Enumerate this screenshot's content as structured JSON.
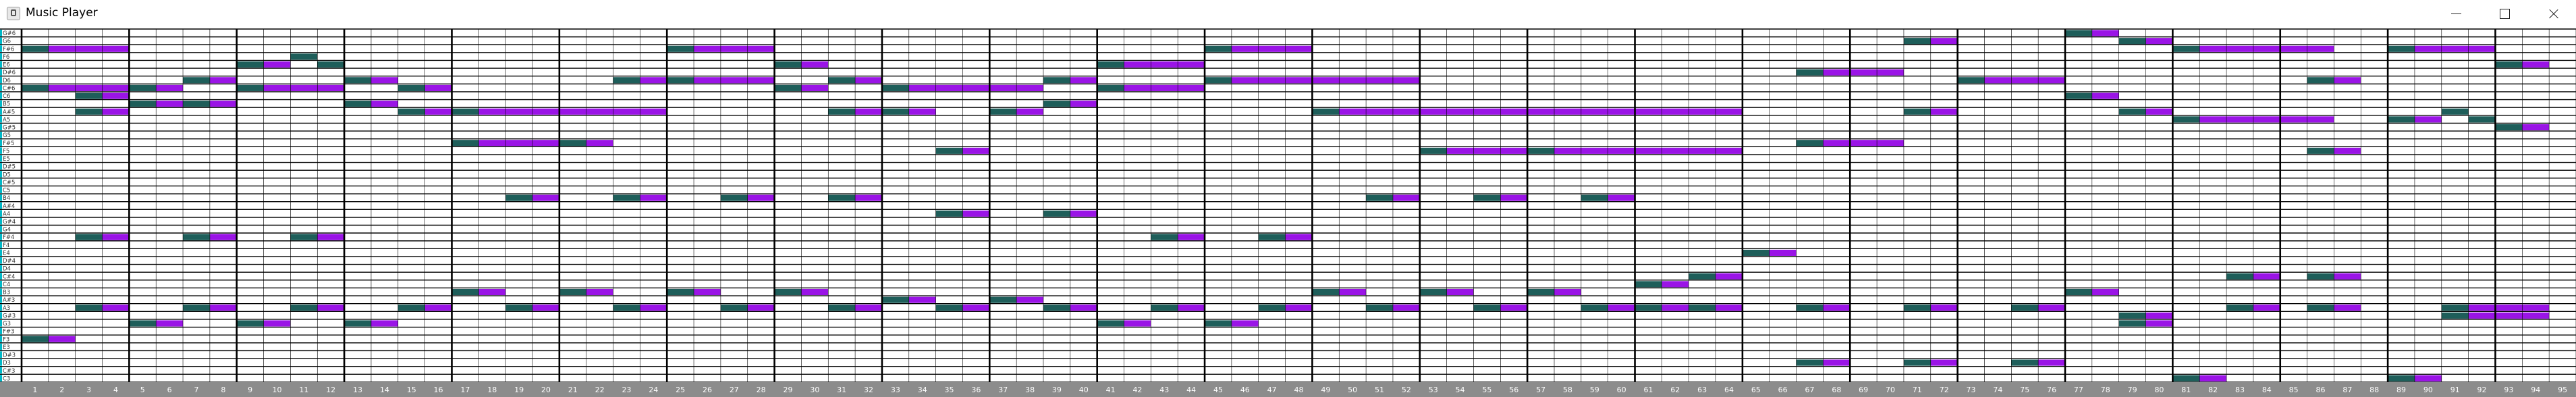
{
  "window": {
    "title": "Music Player",
    "icon": "music-player-app-icon",
    "controls": [
      "minimize-icon",
      "maximize-icon",
      "close-icon"
    ]
  },
  "colors": {
    "note_start": "#1e5e5a",
    "note_sustain": "#9a14e6",
    "grid_line": "#000000",
    "key_accent": "#00b8c8",
    "footer_bg": "#8c8c8c",
    "footer_text": "#ffffff"
  },
  "pitches": [
    "G#6",
    "G6",
    "F#6",
    "F6",
    "E6",
    "D#6",
    "D6",
    "C#6",
    "C6",
    "B5",
    "A#5",
    "A5",
    "G#5",
    "G5",
    "F#5",
    "F5",
    "E5",
    "D#5",
    "D5",
    "C#5",
    "C5",
    "B4",
    "A#4",
    "A4",
    "G#4",
    "G4",
    "F#4",
    "F4",
    "E4",
    "D#4",
    "D4",
    "C#4",
    "C4",
    "B3",
    "A#3",
    "A3",
    "G#3",
    "G3",
    "F#3",
    "F3",
    "E3",
    "D#3",
    "D3",
    "C#3",
    "C3"
  ],
  "measures": [
    "1",
    "2",
    "3",
    "4",
    "5",
    "6",
    "7",
    "8",
    "9",
    "10",
    "11",
    "12",
    "13",
    "14",
    "15",
    "16",
    "17",
    "18",
    "19",
    "20",
    "21",
    "22",
    "23",
    "24",
    "25",
    "26",
    "27",
    "28",
    "29",
    "30",
    "31",
    "32",
    "33",
    "34",
    "35",
    "36",
    "37",
    "38",
    "39",
    "40",
    "41",
    "42",
    "43",
    "44",
    "45",
    "46",
    "47",
    "48",
    "49",
    "50",
    "51",
    "52",
    "53",
    "54",
    "55",
    "56",
    "57",
    "58",
    "59",
    "60",
    "61",
    "62",
    "63",
    "64",
    "65",
    "66",
    "67",
    "68",
    "69",
    "70",
    "71",
    "72",
    "73",
    "74",
    "75",
    "76",
    "77",
    "78",
    "79",
    "80",
    "81",
    "82",
    "83",
    "84",
    "85",
    "86",
    "87",
    "88",
    "89",
    "90",
    "91",
    "92",
    "93",
    "94",
    "95"
  ],
  "notes": [
    {
      "pitch": "F#6",
      "start": 1,
      "length": 4
    },
    {
      "pitch": "C#6",
      "start": 1,
      "length": 4
    },
    {
      "pitch": "C6",
      "start": 3,
      "length": 2
    },
    {
      "pitch": "A#5",
      "start": 3,
      "length": 2
    },
    {
      "pitch": "F#4",
      "start": 3,
      "length": 2
    },
    {
      "pitch": "A3",
      "start": 3,
      "length": 2
    },
    {
      "pitch": "F3",
      "start": 1,
      "length": 2
    },
    {
      "pitch": "C#6",
      "start": 5,
      "length": 2
    },
    {
      "pitch": "B5",
      "start": 5,
      "length": 2
    },
    {
      "pitch": "G3",
      "start": 5,
      "length": 2
    },
    {
      "pitch": "D6",
      "start": 7,
      "length": 2
    },
    {
      "pitch": "B5",
      "start": 7,
      "length": 2
    },
    {
      "pitch": "F#4",
      "start": 7,
      "length": 2
    },
    {
      "pitch": "A3",
      "start": 7,
      "length": 2
    },
    {
      "pitch": "F6",
      "start": 11,
      "length": 1
    },
    {
      "pitch": "E6",
      "start": 9,
      "length": 2
    },
    {
      "pitch": "E6",
      "start": 12,
      "length": 1
    },
    {
      "pitch": "C#6",
      "start": 9,
      "length": 4
    },
    {
      "pitch": "G3",
      "start": 9,
      "length": 2
    },
    {
      "pitch": "F#4",
      "start": 11,
      "length": 2
    },
    {
      "pitch": "A3",
      "start": 11,
      "length": 2
    },
    {
      "pitch": "D6",
      "start": 13,
      "length": 2
    },
    {
      "pitch": "B5",
      "start": 13,
      "length": 2
    },
    {
      "pitch": "C#6",
      "start": 15,
      "length": 2
    },
    {
      "pitch": "A#5",
      "start": 15,
      "length": 2
    },
    {
      "pitch": "G3",
      "start": 13,
      "length": 2
    },
    {
      "pitch": "A3",
      "start": 15,
      "length": 2
    },
    {
      "pitch": "A#5",
      "start": 17,
      "length": 8
    },
    {
      "pitch": "F#5",
      "start": 17,
      "length": 4
    },
    {
      "pitch": "B3",
      "start": 17,
      "length": 2
    },
    {
      "pitch": "B4",
      "start": 19,
      "length": 2
    },
    {
      "pitch": "A3",
      "start": 19,
      "length": 2
    },
    {
      "pitch": "F#5",
      "start": 21,
      "length": 2
    },
    {
      "pitch": "B3",
      "start": 21,
      "length": 2
    },
    {
      "pitch": "A3",
      "start": 23,
      "length": 2
    },
    {
      "pitch": "D6",
      "start": 23,
      "length": 2
    },
    {
      "pitch": "B4",
      "start": 23,
      "length": 2
    },
    {
      "pitch": "F#6",
      "start": 25,
      "length": 4
    },
    {
      "pitch": "D6",
      "start": 25,
      "length": 4
    },
    {
      "pitch": "B3",
      "start": 25,
      "length": 2
    },
    {
      "pitch": "B4",
      "start": 27,
      "length": 2
    },
    {
      "pitch": "A3",
      "start": 27,
      "length": 2
    },
    {
      "pitch": "E6",
      "start": 29,
      "length": 2
    },
    {
      "pitch": "C#6",
      "start": 29,
      "length": 2
    },
    {
      "pitch": "B3",
      "start": 29,
      "length": 2
    },
    {
      "pitch": "A3",
      "start": 31,
      "length": 2
    },
    {
      "pitch": "D6",
      "start": 31,
      "length": 2
    },
    {
      "pitch": "A#5",
      "start": 31,
      "length": 2
    },
    {
      "pitch": "B4",
      "start": 31,
      "length": 2
    },
    {
      "pitch": "C#6",
      "start": 33,
      "length": 6
    },
    {
      "pitch": "A#5",
      "start": 33,
      "length": 2
    },
    {
      "pitch": "A#3",
      "start": 33,
      "length": 2
    },
    {
      "pitch": "A3",
      "start": 35,
      "length": 2
    },
    {
      "pitch": "F5",
      "start": 35,
      "length": 2
    },
    {
      "pitch": "A4",
      "start": 35,
      "length": 2
    },
    {
      "pitch": "A#5",
      "start": 37,
      "length": 2
    },
    {
      "pitch": "A#3",
      "start": 37,
      "length": 2
    },
    {
      "pitch": "A3",
      "start": 39,
      "length": 2
    },
    {
      "pitch": "D6",
      "start": 39,
      "length": 2
    },
    {
      "pitch": "B5",
      "start": 39,
      "length": 2
    },
    {
      "pitch": "A4",
      "start": 39,
      "length": 2
    },
    {
      "pitch": "E6",
      "start": 41,
      "length": 4
    },
    {
      "pitch": "C#6",
      "start": 41,
      "length": 4
    },
    {
      "pitch": "G3",
      "start": 41,
      "length": 2
    },
    {
      "pitch": "F#4",
      "start": 43,
      "length": 2
    },
    {
      "pitch": "A3",
      "start": 43,
      "length": 2
    },
    {
      "pitch": "F#6",
      "start": 45,
      "length": 4
    },
    {
      "pitch": "D6",
      "start": 45,
      "length": 8
    },
    {
      "pitch": "G3",
      "start": 45,
      "length": 2
    },
    {
      "pitch": "F#4",
      "start": 47,
      "length": 2
    },
    {
      "pitch": "A3",
      "start": 47,
      "length": 2
    },
    {
      "pitch": "A#5",
      "start": 49,
      "length": 16
    },
    {
      "pitch": "B3",
      "start": 49,
      "length": 2
    },
    {
      "pitch": "B4",
      "start": 51,
      "length": 2
    },
    {
      "pitch": "A3",
      "start": 51,
      "length": 2
    },
    {
      "pitch": "F5",
      "start": 53,
      "length": 4
    },
    {
      "pitch": "B3",
      "start": 53,
      "length": 2
    },
    {
      "pitch": "B4",
      "start": 55,
      "length": 2
    },
    {
      "pitch": "A3",
      "start": 55,
      "length": 2
    },
    {
      "pitch": "F5",
      "start": 57,
      "length": 8
    },
    {
      "pitch": "B3",
      "start": 57,
      "length": 2
    },
    {
      "pitch": "B4",
      "start": 59,
      "length": 2
    },
    {
      "pitch": "A3",
      "start": 59,
      "length": 2
    },
    {
      "pitch": "C4",
      "start": 61,
      "length": 2
    },
    {
      "pitch": "C#4",
      "start": 63,
      "length": 2
    },
    {
      "pitch": "A3",
      "start": 61,
      "length": 2
    },
    {
      "pitch": "A3",
      "start": 63,
      "length": 2
    },
    {
      "pitch": "E4",
      "start": 65,
      "length": 2
    },
    {
      "pitch": "F#5",
      "start": 67,
      "length": 4
    },
    {
      "pitch": "D#6",
      "start": 67,
      "length": 4
    },
    {
      "pitch": "A3",
      "start": 67,
      "length": 2
    },
    {
      "pitch": "D3",
      "start": 67,
      "length": 2
    },
    {
      "pitch": "G6",
      "start": 71,
      "length": 2
    },
    {
      "pitch": "A#5",
      "start": 71,
      "length": 2
    },
    {
      "pitch": "A3",
      "start": 71,
      "length": 2
    },
    {
      "pitch": "D3",
      "start": 71,
      "length": 2
    },
    {
      "pitch": "D6",
      "start": 73,
      "length": 4
    },
    {
      "pitch": "A3",
      "start": 75,
      "length": 2
    },
    {
      "pitch": "D3",
      "start": 75,
      "length": 2
    },
    {
      "pitch": "G#6",
      "start": 77,
      "length": 2
    },
    {
      "pitch": "C6",
      "start": 77,
      "length": 2
    },
    {
      "pitch": "B3",
      "start": 77,
      "length": 2
    },
    {
      "pitch": "G6",
      "start": 79,
      "length": 2
    },
    {
      "pitch": "A#5",
      "start": 79,
      "length": 2
    },
    {
      "pitch": "G#3",
      "start": 79,
      "length": 2
    },
    {
      "pitch": "G3",
      "start": 79,
      "length": 2
    },
    {
      "pitch": "F#6",
      "start": 81,
      "length": 6
    },
    {
      "pitch": "A5",
      "start": 81,
      "length": 6
    },
    {
      "pitch": "C3",
      "start": 81,
      "length": 2
    },
    {
      "pitch": "C#4",
      "start": 83,
      "length": 2
    },
    {
      "pitch": "A3",
      "start": 83,
      "length": 2
    },
    {
      "pitch": "D6",
      "start": 86,
      "length": 2
    },
    {
      "pitch": "F5",
      "start": 86,
      "length": 2
    },
    {
      "pitch": "C#4",
      "start": 86,
      "length": 2
    },
    {
      "pitch": "A3",
      "start": 86,
      "length": 2
    },
    {
      "pitch": "F#6",
      "start": 89,
      "length": 4
    },
    {
      "pitch": "A5",
      "start": 89,
      "length": 2
    },
    {
      "pitch": "C3",
      "start": 89,
      "length": 2
    },
    {
      "pitch": "A#5",
      "start": 91,
      "length": 1
    },
    {
      "pitch": "A5",
      "start": 92,
      "length": 1
    },
    {
      "pitch": "G#3",
      "start": 91,
      "length": 4
    },
    {
      "pitch": "A3",
      "start": 91,
      "length": 4
    },
    {
      "pitch": "E6",
      "start": 93,
      "length": 2
    },
    {
      "pitch": "G#5",
      "start": 93,
      "length": 2
    }
  ]
}
